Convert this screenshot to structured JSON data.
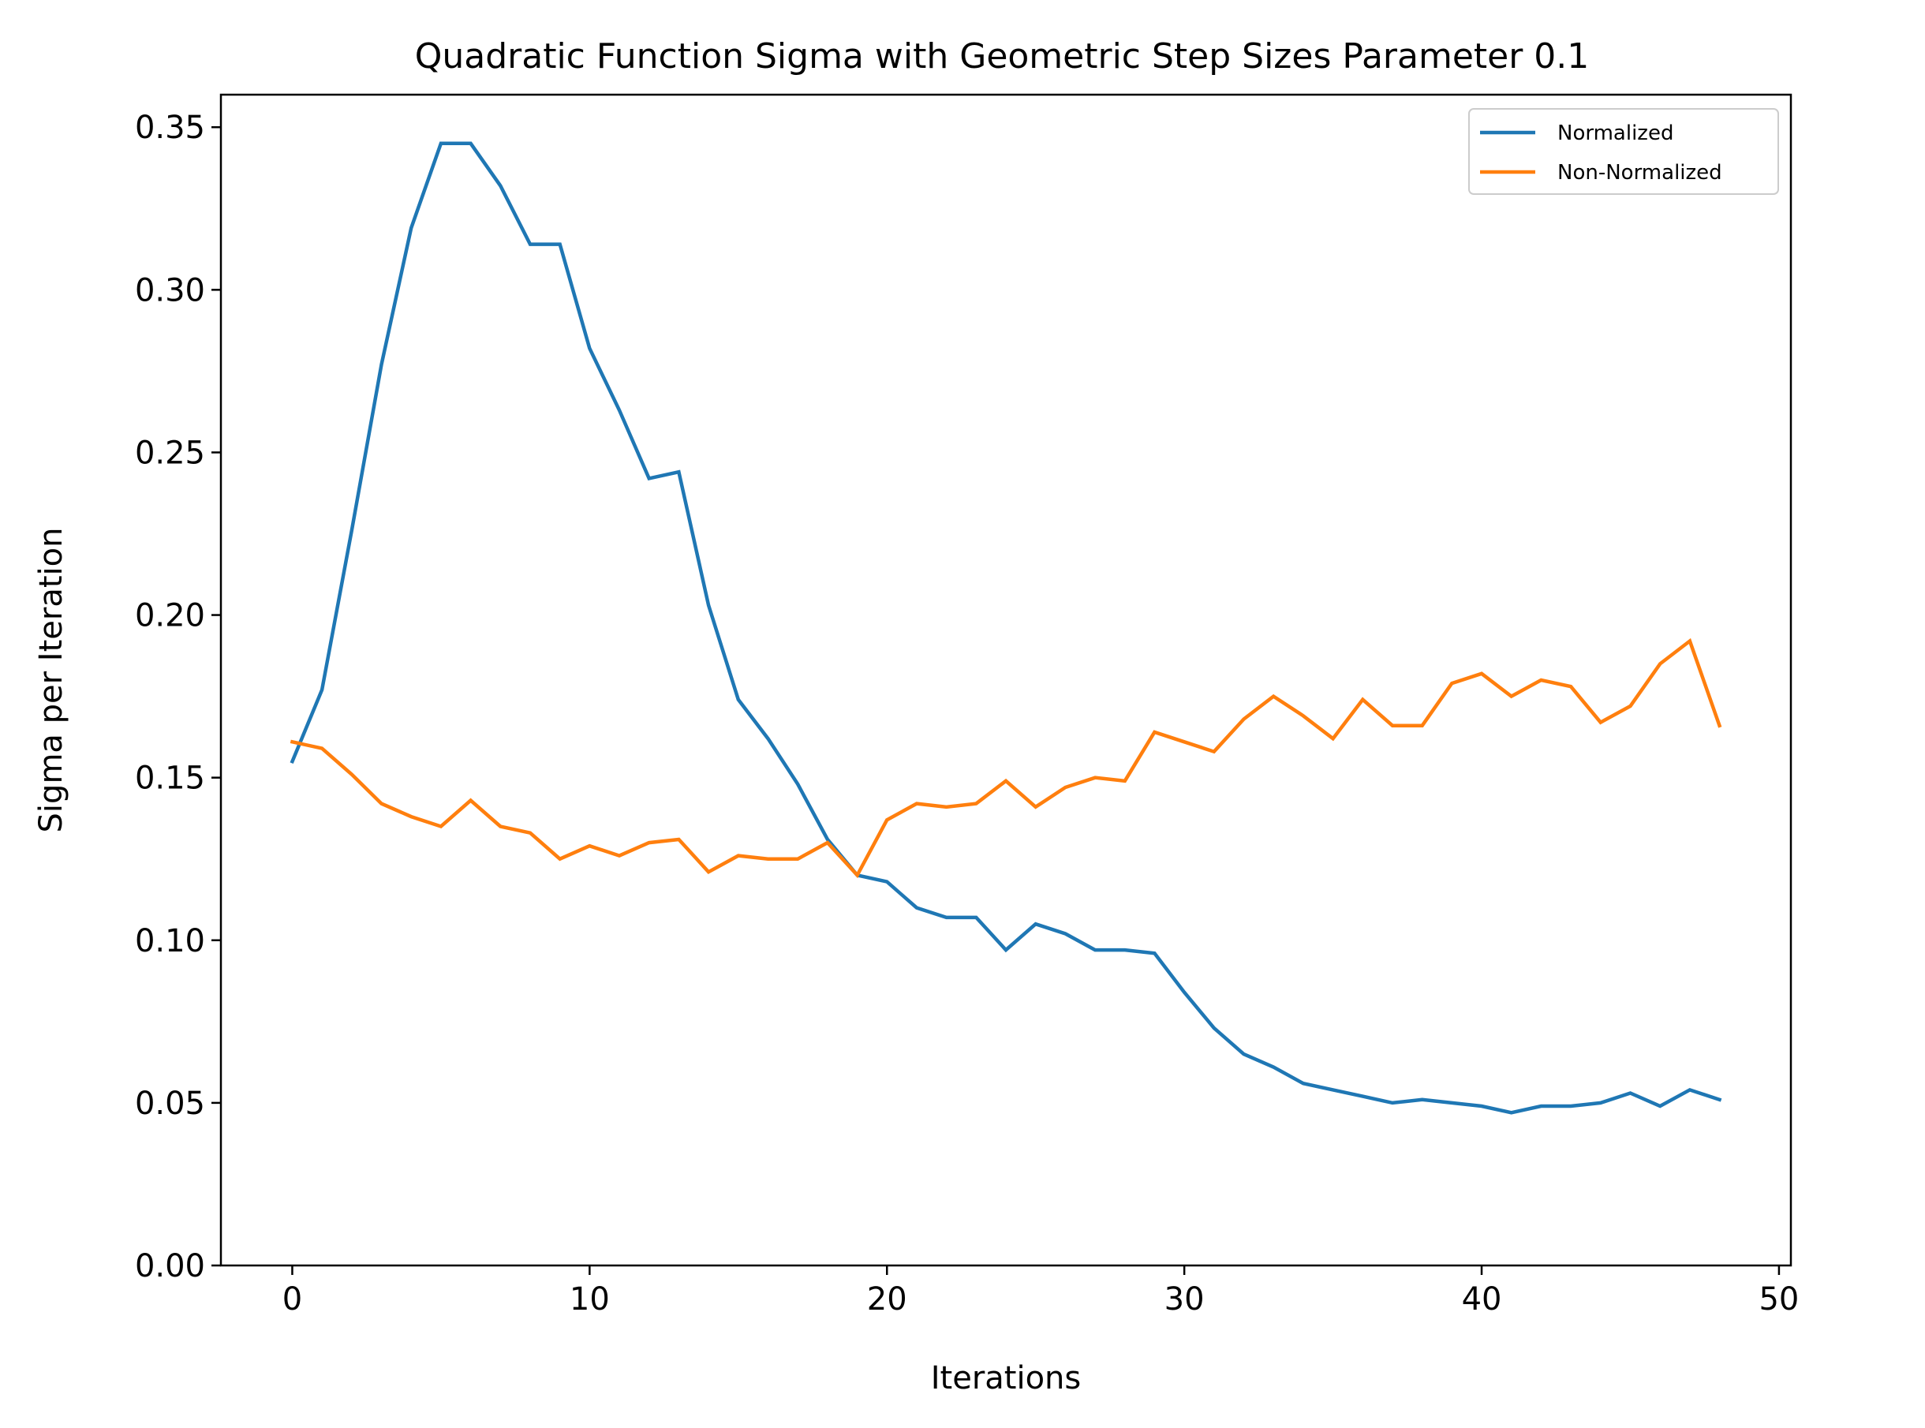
{
  "chart_data": {
    "type": "line",
    "title": "Quadratic Function Sigma with Geometric Step Sizes Parameter 0.1",
    "xlabel": "Iterations",
    "ylabel": "Sigma per Iteration",
    "xlim": [
      -2.4,
      50.4
    ],
    "ylim": [
      0,
      0.36
    ],
    "xticks": [
      0,
      10,
      20,
      30,
      40,
      50
    ],
    "xtick_labels": [
      "0",
      "10",
      "20",
      "30",
      "40",
      "50"
    ],
    "yticks": [
      0,
      0.05,
      0.1,
      0.15,
      0.2,
      0.25,
      0.3,
      0.35
    ],
    "ytick_labels": [
      "0.00",
      "0.05",
      "0.10",
      "0.15",
      "0.20",
      "0.25",
      "0.30",
      "0.35"
    ],
    "grid": false,
    "legend_position": "top-right",
    "x": [
      0,
      1,
      2,
      3,
      4,
      5,
      6,
      7,
      8,
      9,
      10,
      11,
      12,
      13,
      14,
      15,
      16,
      17,
      18,
      19,
      20,
      21,
      22,
      23,
      24,
      25,
      26,
      27,
      28,
      29,
      30,
      31,
      32,
      33,
      34,
      35,
      36,
      37,
      38,
      39,
      40,
      41,
      42,
      43,
      44,
      45,
      46,
      47,
      48
    ],
    "series": [
      {
        "name": "Normalized",
        "color": "#1f77b4",
        "values": [
          0.155,
          0.177,
          0.226,
          0.277,
          0.319,
          0.345,
          0.345,
          0.332,
          0.314,
          0.314,
          0.282,
          0.263,
          0.242,
          0.244,
          0.203,
          0.174,
          0.162,
          0.148,
          0.131,
          0.12,
          0.118,
          0.11,
          0.107,
          0.107,
          0.097,
          0.105,
          0.102,
          0.097,
          0.097,
          0.096,
          0.084,
          0.073,
          0.065,
          0.061,
          0.056,
          0.054,
          0.052,
          0.05,
          0.051,
          0.05,
          0.049,
          0.047,
          0.049,
          0.049,
          0.05,
          0.053,
          0.049,
          0.054,
          0.051
        ]
      },
      {
        "name": "Non-Normalized",
        "color": "#ff7f0e",
        "values": [
          0.161,
          0.159,
          0.151,
          0.142,
          0.138,
          0.135,
          0.143,
          0.135,
          0.133,
          0.125,
          0.129,
          0.126,
          0.13,
          0.131,
          0.121,
          0.126,
          0.125,
          0.125,
          0.13,
          0.12,
          0.137,
          0.142,
          0.141,
          0.142,
          0.149,
          0.141,
          0.147,
          0.15,
          0.149,
          0.164,
          0.161,
          0.158,
          0.168,
          0.175,
          0.169,
          0.162,
          0.174,
          0.166,
          0.166,
          0.179,
          0.182,
          0.175,
          0.18,
          0.178,
          0.167,
          0.172,
          0.185,
          0.192,
          0.166
        ]
      }
    ]
  }
}
